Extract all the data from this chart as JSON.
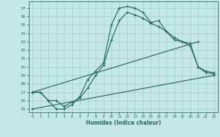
{
  "xlabel": "Humidex (Indice chaleur)",
  "bg_color": "#c5e8e5",
  "grid_color": "#9ecdc8",
  "line_color": "#2a6860",
  "xlim": [
    -0.5,
    23.5
  ],
  "ylim": [
    24.6,
    37.8
  ],
  "xtick_vals": [
    0,
    1,
    2,
    3,
    4,
    5,
    6,
    7,
    8,
    9,
    10,
    11,
    12,
    13,
    14,
    15,
    16,
    17,
    18,
    19,
    20,
    21,
    22,
    23
  ],
  "ytick_vals": [
    25,
    26,
    27,
    28,
    29,
    30,
    31,
    32,
    33,
    34,
    35,
    36,
    37
  ],
  "curve1_x": [
    0,
    1,
    2,
    3,
    4,
    5,
    6,
    7,
    8,
    9,
    10,
    11,
    12,
    13,
    14,
    15,
    16,
    17,
    18,
    19,
    20,
    21,
    22,
    23
  ],
  "curve1_y": [
    27.0,
    27.0,
    26.0,
    25.0,
    25.0,
    25.5,
    26.5,
    28.5,
    29.5,
    30.5,
    35.0,
    37.0,
    37.2,
    37.0,
    36.5,
    35.3,
    35.5,
    34.2,
    33.2,
    33.0,
    32.5,
    30.0,
    29.3,
    29.2
  ],
  "curve2_x": [
    0,
    1,
    2,
    3,
    4,
    5,
    6,
    7,
    8,
    9,
    10,
    11,
    12,
    13,
    14,
    15,
    16,
    17,
    18,
    19,
    20,
    21,
    22,
    23
  ],
  "curve2_y": [
    27.0,
    27.0,
    26.0,
    26.0,
    25.3,
    25.8,
    26.3,
    27.5,
    29.0,
    30.2,
    33.2,
    35.5,
    36.5,
    36.2,
    35.8,
    35.2,
    34.8,
    34.2,
    33.5,
    33.0,
    32.8,
    30.0,
    29.5,
    29.3
  ],
  "line1_x": [
    0,
    21
  ],
  "line1_y": [
    27.0,
    33.0
  ],
  "line2_x": [
    0,
    23
  ],
  "line2_y": [
    25.0,
    29.0
  ]
}
